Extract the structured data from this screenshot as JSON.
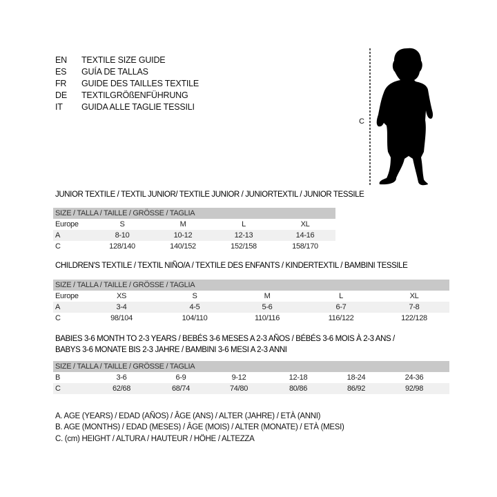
{
  "languages": [
    {
      "code": "EN",
      "text": "TEXTILE SIZE GUIDE"
    },
    {
      "code": "ES",
      "text": "GUÍA DE TALLAS"
    },
    {
      "code": "FR",
      "text": "GUIDE DES TAILLES TEXTILE"
    },
    {
      "code": "DE",
      "text": "TEXTILGRÖßENFÜHRUNG"
    },
    {
      "code": "IT",
      "text": "GUIDA ALLE TAGLIE TESSILI"
    }
  ],
  "figure": {
    "measure_label": "C"
  },
  "tables": [
    {
      "title": [
        "JUNIOR TEXTILE / TEXTIL JUNIOR/ TEXTILE JUNIOR / JUNIORTEXTIL / JUNIOR TESSILE"
      ],
      "header": "SIZE / TALLA / TAILLE / GRÖSSE / TAGLIA",
      "rows": [
        {
          "label": "Europe",
          "values": [
            "S",
            "M",
            "L",
            "XL"
          ]
        },
        {
          "label": "A",
          "values": [
            "8-10",
            "10-12",
            "12-13",
            "14-16"
          ]
        },
        {
          "label": "C",
          "values": [
            "128/140",
            "140/152",
            "152/158",
            "158/170"
          ]
        }
      ]
    },
    {
      "title": [
        "CHILDREN'S TEXTILE / TEXTIL NIÑO/A / TEXTILE DES ENFANTS / KINDERTEXTIL / BAMBINI TESSILE"
      ],
      "header": "SIZE / TALLA / TAILLE / GRÖSSE / TAGLIA",
      "rows": [
        {
          "label": "Europe",
          "values": [
            "XS",
            "S",
            "M",
            "L",
            "XL"
          ]
        },
        {
          "label": "A",
          "values": [
            "3-4",
            "4-5",
            "5-6",
            "6-7",
            "7-8"
          ]
        },
        {
          "label": "C",
          "values": [
            "98/104",
            "104/110",
            "110/116",
            "116/122",
            "122/128"
          ]
        }
      ]
    },
    {
      "title": [
        "BABIES 3-6 MONTH TO 2-3 YEARS / BEBÉS 3-6 MESES A 2-3 AÑOS / BÉBÉS 3-6 MOIS À 2-3 ANS /",
        "BABYS 3-6 MONATE BIS 2-3 JAHRE / BAMBINI 3-6 MESI A 2-3 ANNI"
      ],
      "header": "SIZE / TALLA / TAILLE / GRÖSSE / TAGLIA",
      "rows": [
        {
          "label": "B",
          "values": [
            "3-6",
            "6-9",
            "9-12",
            "12-18",
            "18-24",
            "24-36"
          ]
        },
        {
          "label": "C",
          "values": [
            "62/68",
            "68/74",
            "74/80",
            "80/86",
            "86/92",
            "92/98"
          ]
        }
      ]
    }
  ],
  "legend": [
    "A. AGE (YEARS) / EDAD (AÑOS) / ÂGE (ANS) / ALTER (JAHRE) / ETÀ (ANNI)",
    "B. AGE (MONTHS) / EDAD (MESES) / ÂGE (MOIS) / ALTER (MONATE) / ETÀ (MESI)",
    "C. (cm) HEIGHT / ALTURA / HAUTEUR / HÖHE / ALTEZZA"
  ]
}
